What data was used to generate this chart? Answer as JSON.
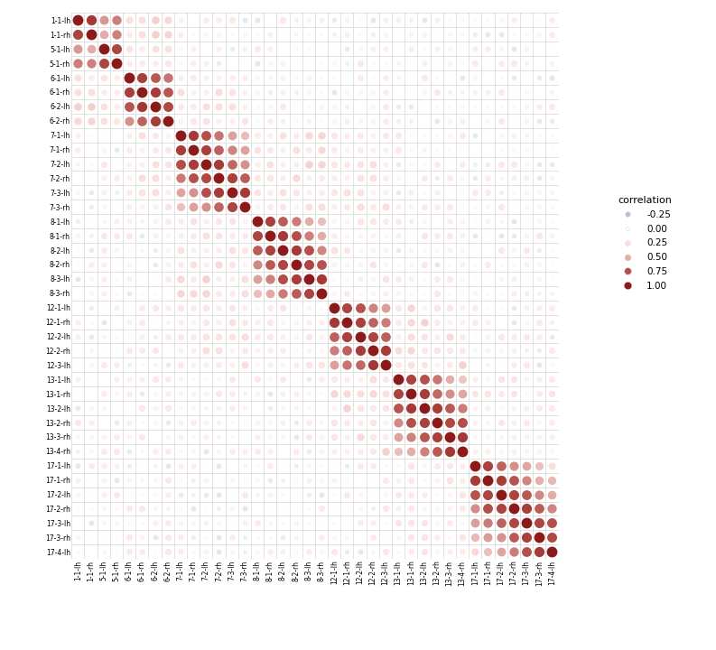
{
  "labels": [
    "1-1-lh",
    "1-1-rh",
    "5-1-lh",
    "5-1-rh",
    "6-1-lh",
    "6-1-rh",
    "6-2-lh",
    "6-2-rh",
    "7-1-lh",
    "7-1-rh",
    "7-2-lh",
    "7-2-rh",
    "7-3-lh",
    "7-3-rh",
    "8-1-lh",
    "8-1-rh",
    "8-2-lh",
    "8-2-rh",
    "8-3-lh",
    "8-3-rh",
    "12-1-lh",
    "12-1-rh",
    "12-2-lh",
    "12-2-rh",
    "12-3-lh",
    "13-1-lh",
    "13-1-rh",
    "13-2-lh",
    "13-2-rh",
    "13-3-rh",
    "13-4-rh",
    "17-1-lh",
    "17-1-rh",
    "17-2-lh",
    "17-2-rh",
    "17-3-lh",
    "17-3-rh",
    "17-4-lh"
  ],
  "group_blocks": [
    [
      0,
      1
    ],
    [
      2,
      3
    ],
    [
      4,
      5,
      6,
      7
    ],
    [
      8,
      9,
      10,
      11,
      12,
      13
    ],
    [
      14,
      15,
      16,
      17,
      18,
      19
    ],
    [
      20,
      21,
      22,
      23,
      24
    ],
    [
      25,
      26,
      27,
      28,
      29,
      30
    ],
    [
      31,
      32,
      33,
      34,
      35,
      36,
      37
    ]
  ],
  "background_color": "#ffffff",
  "grid_color": "#cccccc",
  "legend_title": "correlation",
  "legend_values": [
    -0.25,
    0.0,
    0.25,
    0.5,
    0.75,
    1.0
  ]
}
